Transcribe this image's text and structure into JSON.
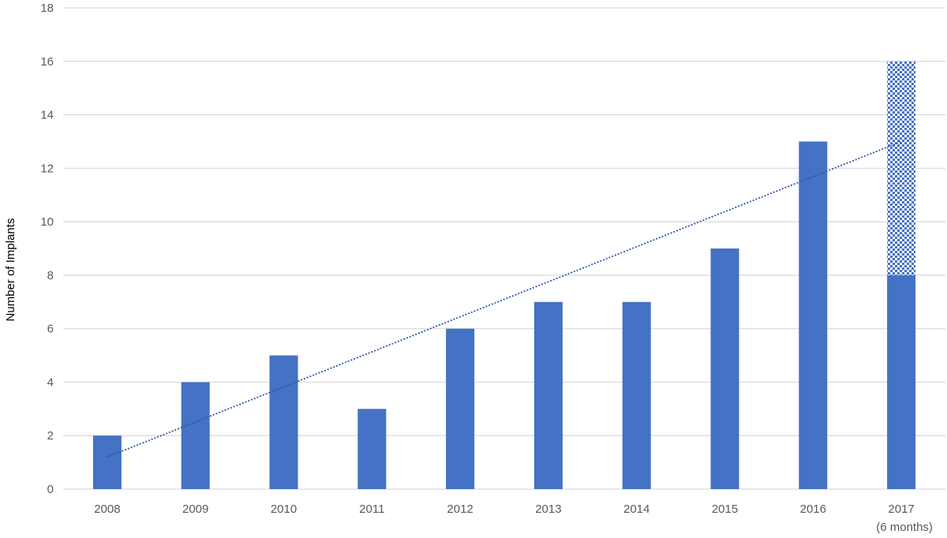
{
  "chart_data": {
    "type": "bar",
    "title": "",
    "xlabel": "",
    "ylabel": "Number of Implants",
    "categories": [
      "2008",
      "2009",
      "2010",
      "2011",
      "2012",
      "2013",
      "2014",
      "2015",
      "2016",
      "2017"
    ],
    "category_sublabels": [
      "",
      "",
      "",
      "",
      "",
      "",
      "",
      "",
      "",
      "(6 months)"
    ],
    "values": [
      2,
      4,
      5,
      3,
      6,
      7,
      7,
      9,
      13,
      8
    ],
    "projected": [
      null,
      null,
      null,
      null,
      null,
      null,
      null,
      null,
      null,
      16
    ],
    "trendline": {
      "type": "linear",
      "style": "dotted",
      "start": 1.2,
      "end": 13.0
    },
    "ylim": [
      0,
      18
    ],
    "yticks": [
      0,
      2,
      4,
      6,
      8,
      10,
      12,
      14,
      16,
      18
    ],
    "grid": true,
    "legend": "none",
    "colors": {
      "bar": "#4472C4",
      "trend": "#2F55A8",
      "grid": "#D9D9D9",
      "tick_text": "#595959"
    }
  }
}
